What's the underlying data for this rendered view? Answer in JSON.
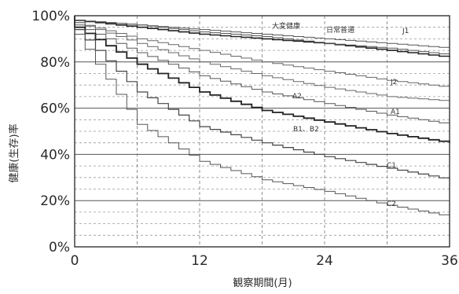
{
  "chart_data": {
    "type": "line",
    "step": true,
    "ylabel": "健康(生存)率",
    "xlabel": "観察期間(月)",
    "xlim": [
      0,
      36
    ],
    "ylim": [
      0,
      100
    ],
    "x_ticks": [
      0,
      12,
      24,
      36
    ],
    "y_ticks": [
      "0%",
      "20%",
      "40%",
      "60%",
      "80%",
      "100%"
    ],
    "grid": true,
    "series": [
      {
        "name": "大変健康",
        "x": [
          0,
          6,
          12,
          18,
          24,
          30,
          36
        ],
        "y": [
          98,
          96,
          94,
          92,
          90,
          88,
          86
        ]
      },
      {
        "name": "日常普通",
        "x": [
          0,
          6,
          12,
          18,
          24,
          30,
          36
        ],
        "y": [
          98,
          95,
          92,
          90,
          88,
          85,
          82
        ]
      },
      {
        "name": "J1",
        "x": [
          0,
          6,
          12,
          18,
          24,
          30,
          36
        ],
        "y": [
          98,
          96,
          93,
          91,
          88,
          86,
          83
        ]
      },
      {
        "name": "J2",
        "x": [
          0,
          6,
          12,
          18,
          24,
          30,
          36
        ],
        "y": [
          97,
          90,
          85,
          80,
          76,
          72,
          69
        ]
      },
      {
        "name": "A2",
        "x": [
          0,
          6,
          12,
          18,
          24,
          30,
          36
        ],
        "y": [
          97,
          88,
          80,
          74,
          69,
          65,
          63
        ]
      },
      {
        "name": "A1",
        "x": [
          0,
          6,
          12,
          18,
          24,
          30,
          36
        ],
        "y": [
          96,
          84,
          74,
          67,
          62,
          57,
          53
        ]
      },
      {
        "name": "B1、B2",
        "x": [
          0,
          6,
          12,
          18,
          24,
          30,
          36
        ],
        "y": [
          95,
          79,
          67,
          59,
          54,
          49,
          45
        ]
      },
      {
        "name": "C1",
        "x": [
          0,
          6,
          12,
          18,
          24,
          30,
          36
        ],
        "y": [
          94,
          67,
          52,
          45,
          39,
          34,
          29
        ]
      },
      {
        "name": "C2",
        "x": [
          0,
          6,
          12,
          18,
          24,
          30,
          36
        ],
        "y": [
          92,
          53,
          37,
          29,
          24,
          18,
          13
        ]
      }
    ]
  },
  "labels": {
    "s0": "大変健康",
    "s1": "日常普通",
    "s2": "J1",
    "s3": "J2",
    "s4": "A2",
    "s5": "A1",
    "s6": "B1、B2",
    "s7": "C1",
    "s8": "C2"
  }
}
